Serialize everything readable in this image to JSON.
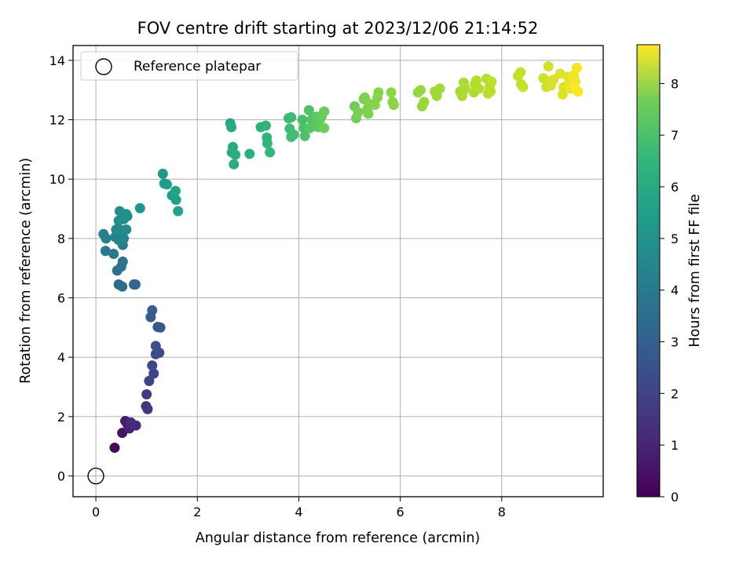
{
  "chart_data": {
    "type": "scatter",
    "title": "FOV centre drift starting at 2023/12/06 21:14:52",
    "xlabel": "Angular distance from reference (arcmin)",
    "ylabel": "Rotation from reference (arcmin)",
    "xlim": [
      -0.45,
      10.0
    ],
    "ylim": [
      -0.7,
      14.5
    ],
    "xticks": [
      0,
      2,
      4,
      6,
      8
    ],
    "yticks": [
      0,
      2,
      4,
      6,
      8,
      10,
      12,
      14
    ],
    "grid": true,
    "legend": {
      "placement": "top-left",
      "entries": [
        "Reference platepar"
      ]
    },
    "reference_point": {
      "x": 0,
      "y": 0
    },
    "colorbar": {
      "label": "Hours from first FF file",
      "range": [
        0,
        8.75
      ],
      "ticks": [
        0,
        1,
        2,
        3,
        4,
        5,
        6,
        7,
        8
      ],
      "colormap": "viridis"
    },
    "points": [
      {
        "x": 0.37,
        "y": 0.95,
        "t": 0.2
      },
      {
        "x": 0.52,
        "y": 1.45,
        "t": 0.4
      },
      {
        "x": 0.58,
        "y": 1.85,
        "t": 0.6
      },
      {
        "x": 0.62,
        "y": 1.75,
        "t": 0.7
      },
      {
        "x": 0.66,
        "y": 1.6,
        "t": 0.8
      },
      {
        "x": 0.72,
        "y": 1.72,
        "t": 0.9
      },
      {
        "x": 0.79,
        "y": 1.7,
        "t": 1.0
      },
      {
        "x": 0.69,
        "y": 1.8,
        "t": 1.1
      },
      {
        "x": 0.99,
        "y": 2.35,
        "t": 1.3
      },
      {
        "x": 1.02,
        "y": 2.25,
        "t": 1.4
      },
      {
        "x": 1.0,
        "y": 2.75,
        "t": 1.5
      },
      {
        "x": 1.05,
        "y": 3.2,
        "t": 1.7
      },
      {
        "x": 1.14,
        "y": 3.45,
        "t": 1.8
      },
      {
        "x": 1.11,
        "y": 3.72,
        "t": 1.9
      },
      {
        "x": 1.18,
        "y": 4.1,
        "t": 2.0
      },
      {
        "x": 1.25,
        "y": 4.15,
        "t": 2.1
      },
      {
        "x": 1.18,
        "y": 4.38,
        "t": 2.2
      },
      {
        "x": 1.22,
        "y": 5.02,
        "t": 2.3
      },
      {
        "x": 1.27,
        "y": 5.0,
        "t": 2.4
      },
      {
        "x": 1.08,
        "y": 5.35,
        "t": 2.5
      },
      {
        "x": 1.11,
        "y": 5.58,
        "t": 2.6
      },
      {
        "x": 0.75,
        "y": 6.45,
        "t": 2.8
      },
      {
        "x": 0.78,
        "y": 6.45,
        "t": 2.9
      },
      {
        "x": 0.45,
        "y": 6.45,
        "t": 3.0
      },
      {
        "x": 0.52,
        "y": 6.38,
        "t": 3.1
      },
      {
        "x": 0.42,
        "y": 6.92,
        "t": 3.2
      },
      {
        "x": 0.5,
        "y": 7.05,
        "t": 3.3
      },
      {
        "x": 0.53,
        "y": 7.22,
        "t": 3.4
      },
      {
        "x": 0.35,
        "y": 7.48,
        "t": 3.5
      },
      {
        "x": 0.19,
        "y": 7.58,
        "t": 3.6
      },
      {
        "x": 0.53,
        "y": 7.78,
        "t": 3.7
      },
      {
        "x": 0.15,
        "y": 8.15,
        "t": 3.8
      },
      {
        "x": 0.2,
        "y": 8.0,
        "t": 3.85
      },
      {
        "x": 0.38,
        "y": 8.05,
        "t": 3.9
      },
      {
        "x": 0.45,
        "y": 7.95,
        "t": 3.95
      },
      {
        "x": 0.55,
        "y": 8.0,
        "t": 4.0
      },
      {
        "x": 0.4,
        "y": 8.3,
        "t": 4.05
      },
      {
        "x": 0.5,
        "y": 8.28,
        "t": 4.1
      },
      {
        "x": 0.6,
        "y": 8.3,
        "t": 4.15
      },
      {
        "x": 0.45,
        "y": 8.6,
        "t": 4.2
      },
      {
        "x": 0.55,
        "y": 8.65,
        "t": 4.25
      },
      {
        "x": 0.62,
        "y": 8.75,
        "t": 4.3
      },
      {
        "x": 0.47,
        "y": 8.92,
        "t": 4.35
      },
      {
        "x": 0.6,
        "y": 8.82,
        "t": 4.4
      },
      {
        "x": 0.87,
        "y": 9.02,
        "t": 4.5
      },
      {
        "x": 1.32,
        "y": 10.18,
        "t": 4.7
      },
      {
        "x": 1.35,
        "y": 9.85,
        "t": 4.8
      },
      {
        "x": 1.4,
        "y": 9.82,
        "t": 4.85
      },
      {
        "x": 1.5,
        "y": 9.45,
        "t": 4.9
      },
      {
        "x": 1.58,
        "y": 9.3,
        "t": 4.95
      },
      {
        "x": 1.57,
        "y": 9.6,
        "t": 5.0
      },
      {
        "x": 1.62,
        "y": 8.92,
        "t": 5.05
      },
      {
        "x": 2.65,
        "y": 11.88,
        "t": 5.2
      },
      {
        "x": 2.67,
        "y": 11.75,
        "t": 5.25
      },
      {
        "x": 2.7,
        "y": 11.08,
        "t": 5.3
      },
      {
        "x": 2.68,
        "y": 10.9,
        "t": 5.35
      },
      {
        "x": 2.75,
        "y": 10.82,
        "t": 5.4
      },
      {
        "x": 2.72,
        "y": 10.5,
        "t": 5.45
      },
      {
        "x": 3.03,
        "y": 10.85,
        "t": 5.5
      },
      {
        "x": 3.25,
        "y": 11.75,
        "t": 5.6
      },
      {
        "x": 3.35,
        "y": 11.8,
        "t": 5.65
      },
      {
        "x": 3.37,
        "y": 11.4,
        "t": 5.7
      },
      {
        "x": 3.38,
        "y": 11.2,
        "t": 5.75
      },
      {
        "x": 3.43,
        "y": 10.9,
        "t": 5.8
      },
      {
        "x": 3.8,
        "y": 12.05,
        "t": 5.9
      },
      {
        "x": 3.85,
        "y": 12.08,
        "t": 5.95
      },
      {
        "x": 3.82,
        "y": 11.7,
        "t": 6.0
      },
      {
        "x": 3.85,
        "y": 11.42,
        "t": 6.05
      },
      {
        "x": 3.9,
        "y": 11.5,
        "t": 6.1
      },
      {
        "x": 4.07,
        "y": 12.0,
        "t": 6.15
      },
      {
        "x": 4.1,
        "y": 11.72,
        "t": 6.2
      },
      {
        "x": 4.12,
        "y": 11.45,
        "t": 6.25
      },
      {
        "x": 4.2,
        "y": 12.32,
        "t": 6.3
      },
      {
        "x": 4.25,
        "y": 12.0,
        "t": 6.35
      },
      {
        "x": 4.28,
        "y": 11.82,
        "t": 6.4
      },
      {
        "x": 4.22,
        "y": 11.72,
        "t": 6.45
      },
      {
        "x": 4.35,
        "y": 12.1,
        "t": 6.5
      },
      {
        "x": 4.38,
        "y": 11.75,
        "t": 6.55
      },
      {
        "x": 4.42,
        "y": 12.02,
        "t": 6.6
      },
      {
        "x": 4.45,
        "y": 12.12,
        "t": 6.65
      },
      {
        "x": 4.5,
        "y": 12.28,
        "t": 6.7
      },
      {
        "x": 4.5,
        "y": 11.72,
        "t": 6.75
      },
      {
        "x": 5.1,
        "y": 12.45,
        "t": 6.8
      },
      {
        "x": 5.13,
        "y": 12.05,
        "t": 6.85
      },
      {
        "x": 5.17,
        "y": 12.25,
        "t": 6.9
      },
      {
        "x": 5.28,
        "y": 12.7,
        "t": 6.95
      },
      {
        "x": 5.3,
        "y": 12.75,
        "t": 7.0
      },
      {
        "x": 5.35,
        "y": 12.35,
        "t": 7.0
      },
      {
        "x": 5.38,
        "y": 12.55,
        "t": 7.05
      },
      {
        "x": 5.37,
        "y": 12.2,
        "t": 7.05
      },
      {
        "x": 5.5,
        "y": 12.5,
        "t": 7.1
      },
      {
        "x": 5.55,
        "y": 12.75,
        "t": 7.1
      },
      {
        "x": 5.57,
        "y": 12.92,
        "t": 7.15
      },
      {
        "x": 5.82,
        "y": 12.92,
        "t": 7.2
      },
      {
        "x": 5.85,
        "y": 12.6,
        "t": 7.2
      },
      {
        "x": 5.87,
        "y": 12.5,
        "t": 7.25
      },
      {
        "x": 6.35,
        "y": 12.92,
        "t": 7.3
      },
      {
        "x": 6.4,
        "y": 13.0,
        "t": 7.35
      },
      {
        "x": 6.43,
        "y": 12.45,
        "t": 7.4
      },
      {
        "x": 6.47,
        "y": 12.6,
        "t": 7.4
      },
      {
        "x": 6.68,
        "y": 12.95,
        "t": 7.45
      },
      {
        "x": 6.72,
        "y": 12.8,
        "t": 7.5
      },
      {
        "x": 6.78,
        "y": 13.05,
        "t": 7.5
      },
      {
        "x": 7.18,
        "y": 12.95,
        "t": 7.55
      },
      {
        "x": 7.22,
        "y": 12.8,
        "t": 7.6
      },
      {
        "x": 7.25,
        "y": 13.25,
        "t": 7.6
      },
      {
        "x": 7.28,
        "y": 13.05,
        "t": 7.65
      },
      {
        "x": 7.45,
        "y": 12.92,
        "t": 7.7
      },
      {
        "x": 7.47,
        "y": 13.2,
        "t": 7.7
      },
      {
        "x": 7.5,
        "y": 13.32,
        "t": 7.75
      },
      {
        "x": 7.55,
        "y": 13.05,
        "t": 7.75
      },
      {
        "x": 7.7,
        "y": 13.38,
        "t": 7.8
      },
      {
        "x": 7.73,
        "y": 12.88,
        "t": 7.8
      },
      {
        "x": 7.76,
        "y": 13.1,
        "t": 7.85
      },
      {
        "x": 7.78,
        "y": 12.95,
        "t": 7.85
      },
      {
        "x": 7.8,
        "y": 13.28,
        "t": 7.9
      },
      {
        "x": 8.32,
        "y": 13.48,
        "t": 7.95
      },
      {
        "x": 8.37,
        "y": 13.6,
        "t": 8.0
      },
      {
        "x": 8.38,
        "y": 13.2,
        "t": 8.0
      },
      {
        "x": 8.42,
        "y": 13.1,
        "t": 8.05
      },
      {
        "x": 8.82,
        "y": 13.4,
        "t": 8.1
      },
      {
        "x": 8.88,
        "y": 13.1,
        "t": 8.15
      },
      {
        "x": 8.92,
        "y": 13.8,
        "t": 8.15
      },
      {
        "x": 8.95,
        "y": 13.3,
        "t": 8.2
      },
      {
        "x": 8.97,
        "y": 13.15,
        "t": 8.2
      },
      {
        "x": 9.02,
        "y": 13.35,
        "t": 8.25
      },
      {
        "x": 9.15,
        "y": 13.55,
        "t": 8.3
      },
      {
        "x": 9.2,
        "y": 12.85,
        "t": 8.35
      },
      {
        "x": 9.22,
        "y": 13.1,
        "t": 8.35
      },
      {
        "x": 9.3,
        "y": 13.45,
        "t": 8.4
      },
      {
        "x": 9.32,
        "y": 13.2,
        "t": 8.45
      },
      {
        "x": 9.35,
        "y": 13.05,
        "t": 8.5
      },
      {
        "x": 9.38,
        "y": 13.25,
        "t": 8.5
      },
      {
        "x": 9.42,
        "y": 13.5,
        "t": 8.55
      },
      {
        "x": 9.45,
        "y": 13.3,
        "t": 8.6
      },
      {
        "x": 9.48,
        "y": 13.75,
        "t": 8.65
      },
      {
        "x": 9.5,
        "y": 12.95,
        "t": 8.7
      },
      {
        "x": 9.45,
        "y": 13.05,
        "t": 8.72
      }
    ]
  }
}
